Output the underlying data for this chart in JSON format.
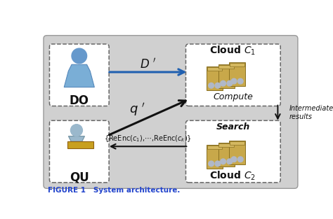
{
  "bg_color": "#d0d0d0",
  "fig_bg": "#ffffff",
  "arrow_blue": "#2060b0",
  "arrow_black": "#111111",
  "text_dark": "#111111",
  "label_do": "DO",
  "label_qu": "QU",
  "label_cloud1_title": "Cloud $C_1$",
  "label_cloud1_sub": "Compute",
  "label_cloud2_title": "Cloud $C_2$",
  "label_cloud2_sub": "Search",
  "label_D": "$D\\ '$",
  "label_q": "$q\\ '$",
  "label_intermediate": "Intermediate\nresults",
  "label_reenc": "{ReEnc($c_1$),⋯,ReEnc($c_k$)}",
  "caption": "FIGURE 1   System architecture."
}
